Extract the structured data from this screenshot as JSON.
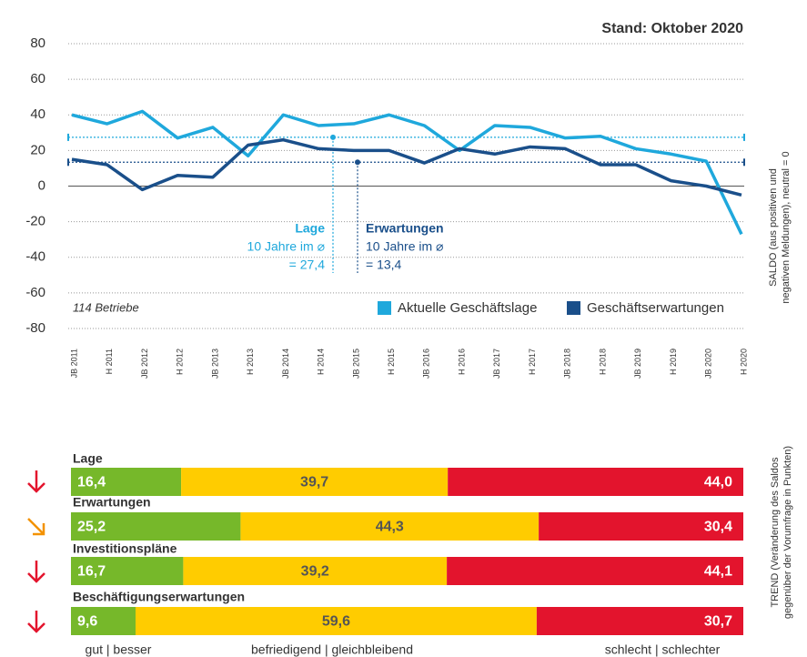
{
  "chart_data": [
    {
      "type": "line",
      "title": "Stand: Oktober 2020",
      "note": "114 Betriebe",
      "y_label": [
        "SALDO (aus positiven und",
        "negativen Meldungen), neutral = 0"
      ],
      "categories": [
        "JB 2011",
        "H 2011",
        "JB 2012",
        "H 2012",
        "JB 2013",
        "H 2013",
        "JB 2014",
        "H 2014",
        "JB 2015",
        "H 2015",
        "JB 2016",
        "H 2016",
        "JB 2017",
        "H 2017",
        "JB 2018",
        "H 2018",
        "JB 2019",
        "H 2019",
        "JB 2020",
        "H 2020"
      ],
      "series": [
        {
          "name": "Aktuelle Geschäftslage",
          "color": "#1fa8dc",
          "values": [
            40,
            35,
            42,
            27,
            33,
            17,
            40,
            34,
            35,
            40,
            34,
            20,
            34,
            33,
            27,
            28,
            21,
            18,
            14,
            -27
          ],
          "average": 27.4,
          "average_label": "= 27,4",
          "average_title": "Lage",
          "average_note": "10 Jahre im ⌀"
        },
        {
          "name": "Geschäftserwartungen",
          "color": "#1a4f8a",
          "values": [
            15,
            12,
            -2,
            6,
            5,
            23,
            26,
            21,
            20,
            20,
            13,
            21,
            18,
            22,
            21,
            12,
            12,
            3,
            0,
            -5
          ],
          "average": 13.4,
          "average_label": "= 13,4",
          "average_title": "Erwartungen",
          "average_note": "10 Jahre im ⌀"
        }
      ],
      "ylim": [
        -80,
        80
      ],
      "yticks": [
        80,
        60,
        40,
        20,
        0,
        -20,
        -40,
        -60,
        -80
      ],
      "grid": true
    },
    {
      "type": "stacked_bar",
      "y_label": [
        "TREND (Veränderung des Saldos",
        "gegenüber der Vorumfrage in Punkten)"
      ],
      "categories": [
        "Lage",
        "Erwartungen",
        "Investitionspläne",
        "Beschäftigungserwartungen"
      ],
      "series": [
        {
          "name": "gut | besser",
          "color": "#76b82a",
          "values": [
            16.4,
            25.2,
            16.7,
            9.6
          ],
          "value_labels": [
            "16,4",
            "25,2",
            "16,7",
            "9,6"
          ]
        },
        {
          "name": "befriedigend | gleichbleibend",
          "color": "#ffcc00",
          "values": [
            39.7,
            44.3,
            39.2,
            59.6
          ],
          "value_labels": [
            "39,7",
            "44,3",
            "39,2",
            "59,6"
          ]
        },
        {
          "name": "schlecht | schlechter",
          "color": "#e3142d",
          "values": [
            44.0,
            30.4,
            44.1,
            30.7
          ],
          "value_labels": [
            "44,0",
            "30,4",
            "44,1",
            "30,7"
          ]
        }
      ]
    }
  ]
}
